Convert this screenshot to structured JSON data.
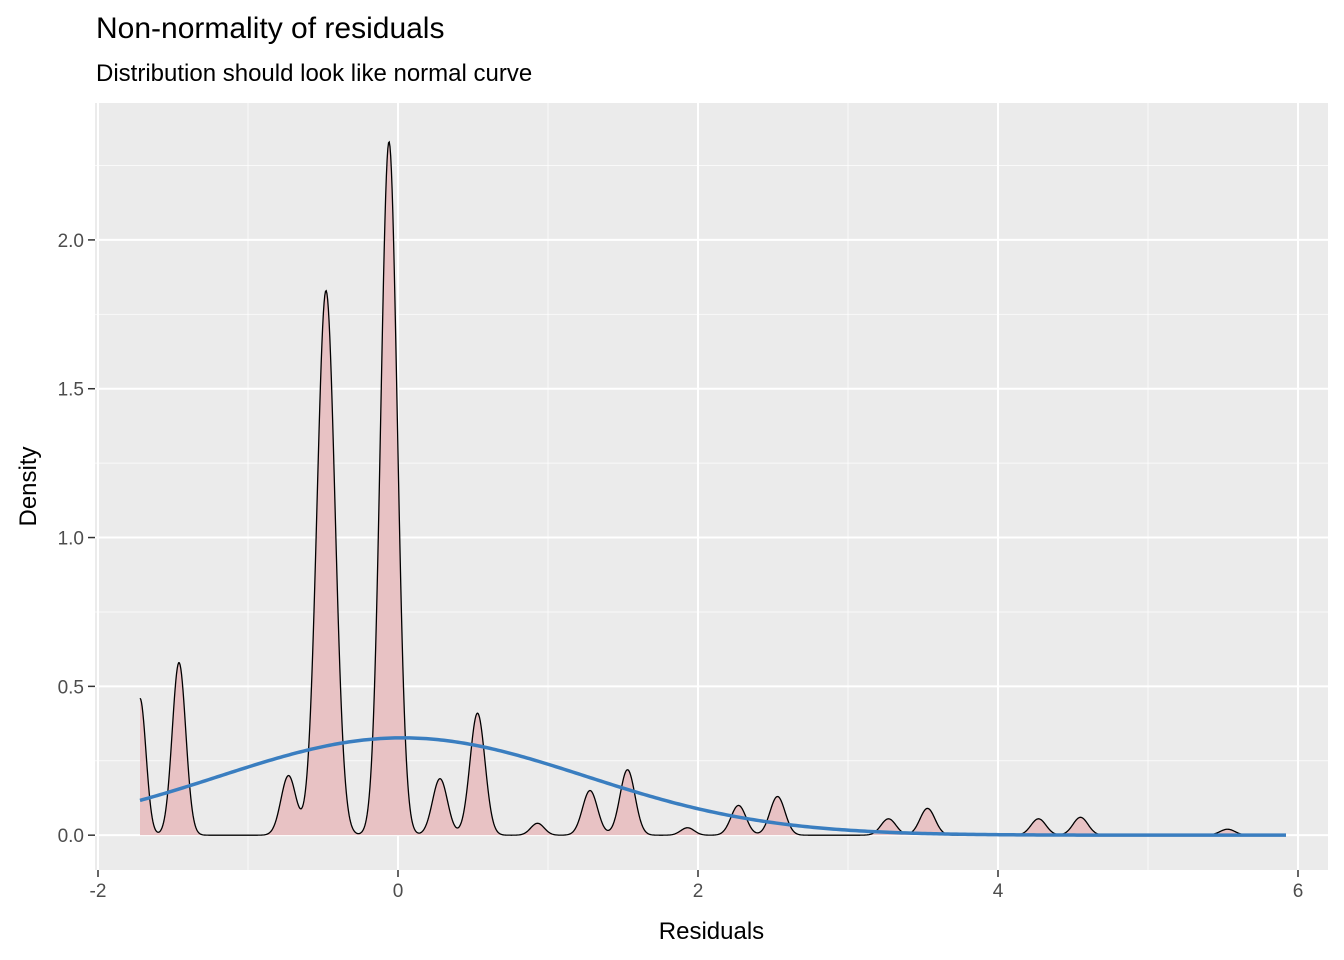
{
  "chart_data": {
    "type": "area",
    "title": "Non-normality of residuals",
    "subtitle": "Distribution should look like normal curve",
    "xlabel": "Residuals",
    "ylabel": "Density",
    "xlim": [
      -2.02,
      6.2
    ],
    "ylim": [
      -0.117,
      2.46
    ],
    "x_ticks": [
      -2,
      0,
      2,
      4,
      6
    ],
    "x_tick_labels": [
      "-2",
      "0",
      "2",
      "4",
      "6"
    ],
    "y_ticks": [
      0.0,
      0.5,
      1.0,
      1.5,
      2.0
    ],
    "y_tick_labels": [
      "0.0",
      "0.5",
      "1.0",
      "1.5",
      "2.0"
    ],
    "grid": true,
    "x_range": [
      -1.72,
      5.92
    ],
    "density_peaks": [
      {
        "x": -1.46,
        "height": 0.58,
        "sd": 0.045
      },
      {
        "x": -0.73,
        "height": 0.2,
        "sd": 0.05
      },
      {
        "x": -0.48,
        "height": 1.83,
        "sd": 0.06
      },
      {
        "x": -0.06,
        "height": 2.33,
        "sd": 0.055
      },
      {
        "x": 0.28,
        "height": 0.19,
        "sd": 0.05
      },
      {
        "x": 0.53,
        "height": 0.41,
        "sd": 0.05
      },
      {
        "x": 0.93,
        "height": 0.04,
        "sd": 0.045
      },
      {
        "x": 1.28,
        "height": 0.15,
        "sd": 0.05
      },
      {
        "x": 1.53,
        "height": 0.22,
        "sd": 0.05
      },
      {
        "x": 1.93,
        "height": 0.025,
        "sd": 0.045
      },
      {
        "x": 2.27,
        "height": 0.1,
        "sd": 0.05
      },
      {
        "x": 2.53,
        "height": 0.13,
        "sd": 0.05
      },
      {
        "x": 3.27,
        "height": 0.055,
        "sd": 0.05
      },
      {
        "x": 3.53,
        "height": 0.09,
        "sd": 0.05
      },
      {
        "x": 4.27,
        "height": 0.055,
        "sd": 0.05
      },
      {
        "x": 4.55,
        "height": 0.06,
        "sd": 0.05
      },
      {
        "x": 5.53,
        "height": 0.02,
        "sd": 0.05
      }
    ],
    "boundary_peak": {
      "x": -1.72,
      "height": 0.46,
      "sd": 0.04
    },
    "normal_curve": {
      "mean": 0.03,
      "sd": 1.22,
      "peak": 0.327
    },
    "colors": {
      "panel": "#EBEBEB",
      "grid_major": "#FFFFFF",
      "density_fill": "#E8C2C4",
      "density_line": "#000000",
      "normal_line": "#3A7EC0"
    }
  }
}
